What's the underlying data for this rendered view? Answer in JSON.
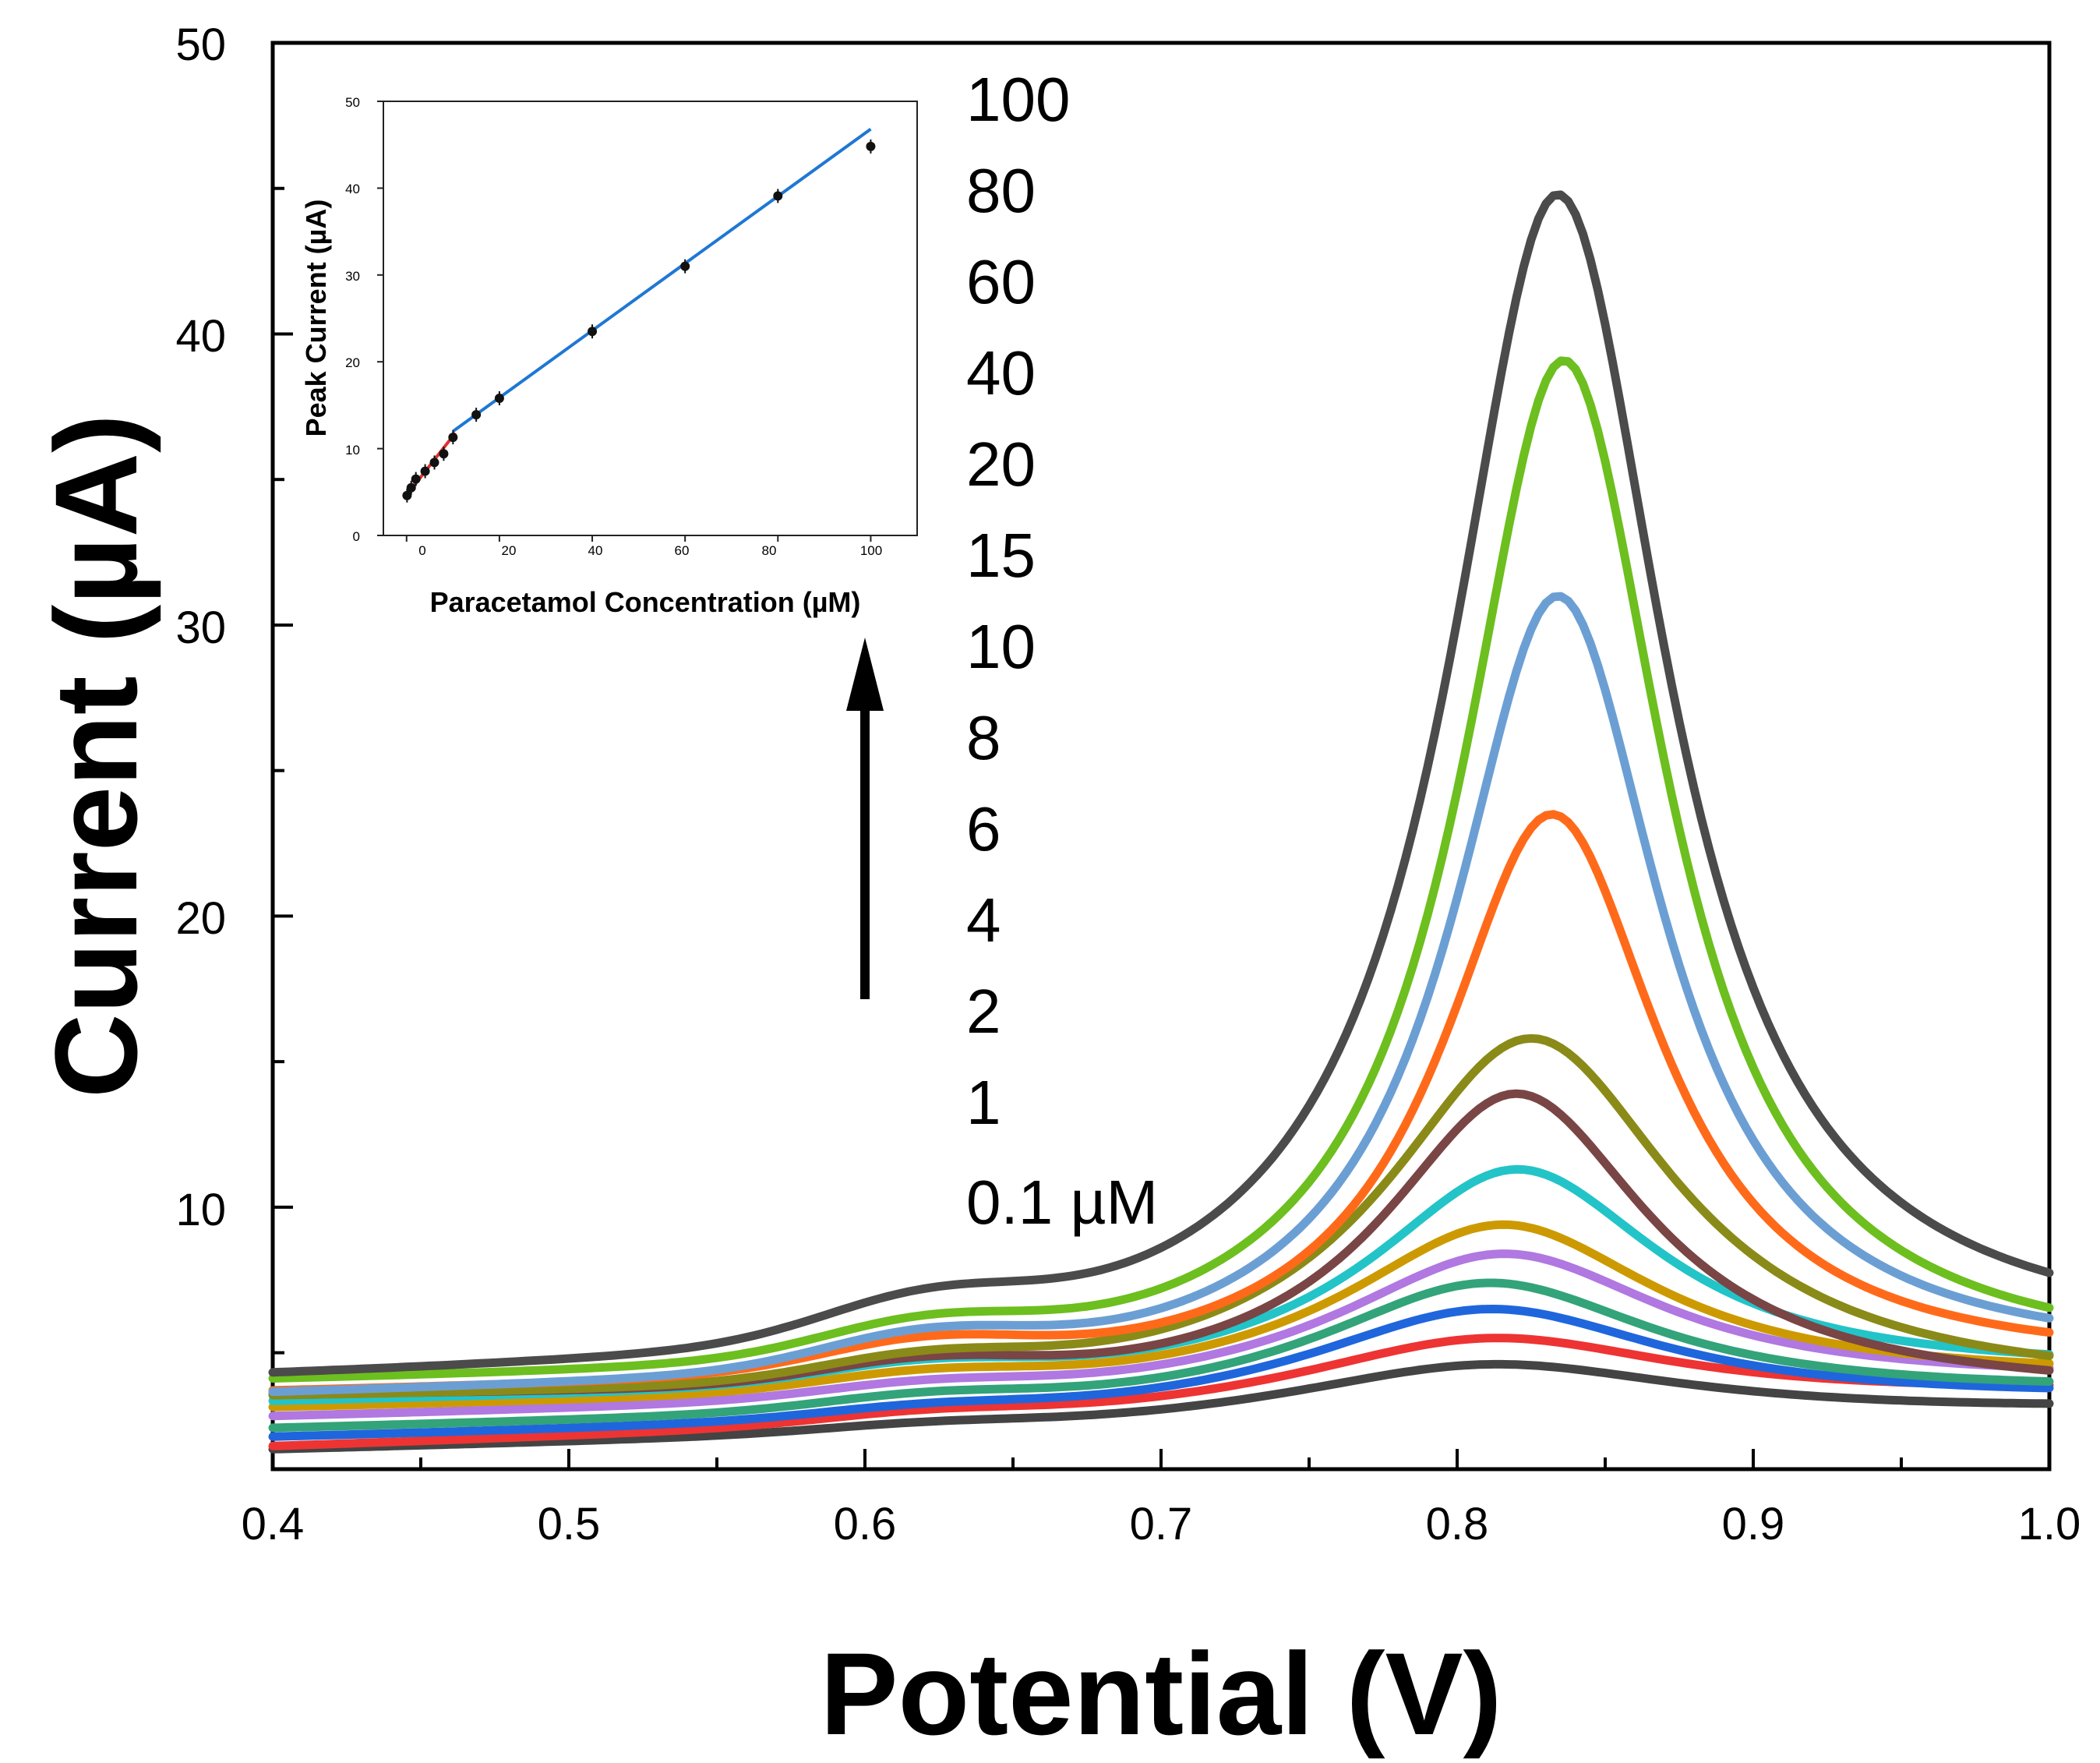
{
  "chart_data": [
    {
      "type": "line",
      "title": "",
      "xlabel": "Potential (V)",
      "ylabel": "Current (µA)",
      "xlim": [
        0.4,
        1.0
      ],
      "ylim": [
        1,
        50
      ],
      "xticks": [
        "0.4",
        "0.5",
        "0.6",
        "0.7",
        "0.8",
        "0.9",
        "1.0"
      ],
      "yticks": [
        "10",
        "20",
        "30",
        "40",
        "50"
      ],
      "grid": false,
      "legend": "none",
      "concentration_labels": [
        "100",
        "80",
        "60",
        "40",
        "20",
        "15",
        "10",
        "8",
        "6",
        "4",
        "2",
        "1",
        "0.1 µM"
      ],
      "annotation": "upward arrow indicating increasing concentration",
      "series": [
        {
          "name": "0.1 µM",
          "color": "#444444",
          "peak_x": 0.81,
          "peak": 4.6,
          "width": 0.085,
          "base_start": 1.6,
          "base_end": 2.9,
          "shoulder": 0.2
        },
        {
          "name": "1 µM",
          "color": "#ee3333",
          "peak_x": 0.81,
          "peak": 5.5,
          "width": 0.08,
          "base_start": 1.7,
          "base_end": 3.5,
          "shoulder": 0.3
        },
        {
          "name": "2 µM",
          "color": "#1f66dd",
          "peak_x": 0.81,
          "peak": 6.5,
          "width": 0.075,
          "base_start": 2.0,
          "base_end": 3.3,
          "shoulder": 0.3
        },
        {
          "name": "4 µM",
          "color": "#33a37a",
          "peak_x": 0.81,
          "peak": 7.4,
          "width": 0.07,
          "base_start": 2.3,
          "base_end": 3.5,
          "shoulder": 0.4
        },
        {
          "name": "6 µM",
          "color": "#b078e0",
          "peak_x": 0.815,
          "peak": 8.4,
          "width": 0.068,
          "base_start": 2.7,
          "base_end": 3.9,
          "shoulder": 0.4
        },
        {
          "name": "8 µM",
          "color": "#cc9a00",
          "peak_x": 0.815,
          "peak": 9.4,
          "width": 0.065,
          "base_start": 3.0,
          "base_end": 4.0,
          "shoulder": 0.5
        },
        {
          "name": "10 µM",
          "color": "#22c4c8",
          "peak_x": 0.82,
          "peak": 11.3,
          "width": 0.06,
          "base_start": 3.2,
          "base_end": 4.2,
          "shoulder": 0.6
        },
        {
          "name": "15 µM",
          "color": "#7a4545",
          "peak_x": 0.82,
          "peak": 13.9,
          "width": 0.055,
          "base_start": 3.4,
          "base_end": 3.5,
          "shoulder": 0.7
        },
        {
          "name": "20 µM",
          "color": "#8a8a18",
          "peak_x": 0.825,
          "peak": 15.8,
          "width": 0.06,
          "base_start": 3.3,
          "base_end": 3.6,
          "shoulder": 0.7
        },
        {
          "name": "40 µM",
          "color": "#ff6a1a",
          "peak_x": 0.832,
          "peak": 23.5,
          "width": 0.045,
          "base_start": 3.5,
          "base_end": 4.4,
          "shoulder": 0.9
        },
        {
          "name": "60 µM",
          "color": "#6b9fd4",
          "peak_x": 0.834,
          "peak": 31.0,
          "width": 0.043,
          "base_start": 3.4,
          "base_end": 4.5,
          "shoulder": 1.0
        },
        {
          "name": "80 µM",
          "color": "#6cbf1e",
          "peak_x": 0.836,
          "peak": 39.1,
          "width": 0.042,
          "base_start": 3.8,
          "base_end": 4.4,
          "shoulder": 1.0
        },
        {
          "name": "100 µM",
          "color": "#4b4b4b",
          "peak_x": 0.834,
          "peak": 44.8,
          "width": 0.045,
          "base_start": 3.9,
          "base_end": 5.0,
          "shoulder": 1.2
        }
      ]
    },
    {
      "type": "scatter",
      "title": "",
      "xlabel": "Paracetamol Concentration (µM)",
      "ylabel": "Peak Current (µA)",
      "xlim": [
        -5,
        110
      ],
      "ylim": [
        0,
        50
      ],
      "xticks": [
        "0",
        "20",
        "40",
        "60",
        "80",
        "100"
      ],
      "yticks": [
        "0",
        "10",
        "20",
        "30",
        "40",
        "50"
      ],
      "points": {
        "x": [
          0.1,
          1,
          2,
          4,
          6,
          8,
          10,
          15,
          20,
          40,
          60,
          80,
          100
        ],
        "y": [
          4.6,
          5.5,
          6.5,
          7.4,
          8.4,
          9.4,
          11.3,
          13.9,
          15.8,
          23.5,
          31.0,
          39.1,
          44.8
        ]
      },
      "fit_low": {
        "color": "#e03030",
        "x": [
          -0.5,
          10.5
        ],
        "y": [
          4.3,
          11.8
        ]
      },
      "fit_high": {
        "color": "#1f77d4",
        "x": [
          10,
          100
        ],
        "y": [
          12.0,
          46.8
        ]
      }
    }
  ]
}
